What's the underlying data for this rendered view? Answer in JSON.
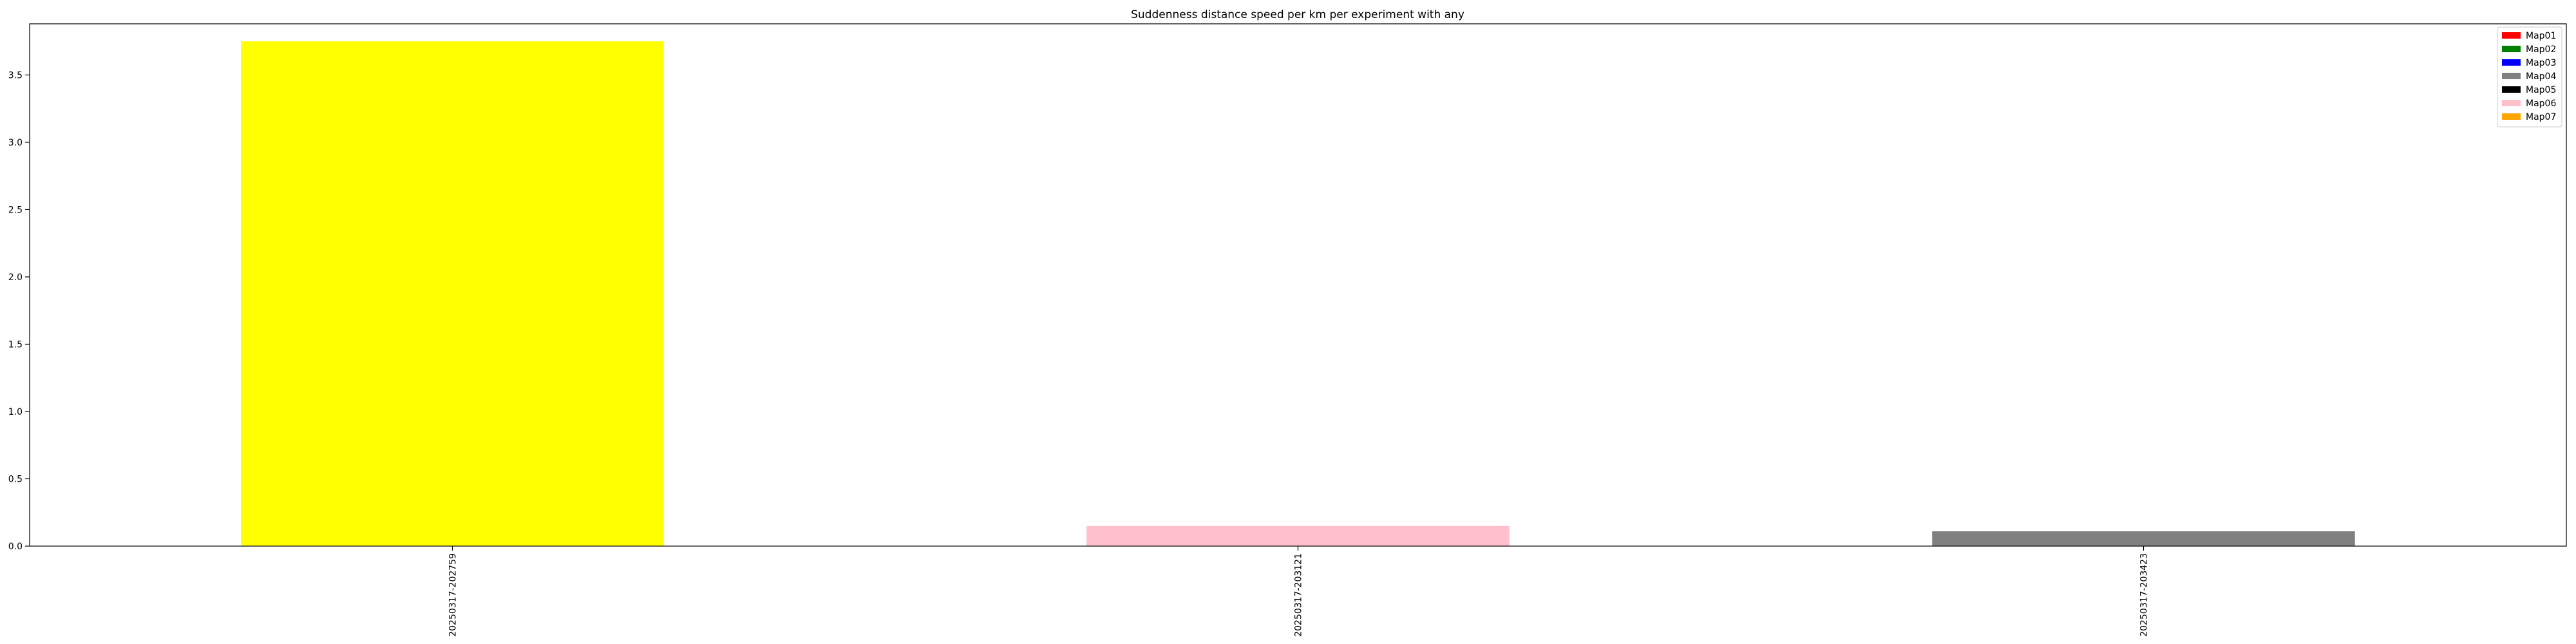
{
  "chart_data": {
    "type": "bar",
    "title": "Suddenness distance speed per km per experiment with any",
    "xlabel": "",
    "ylabel": "",
    "categories": [
      "20250317-202759",
      "20250317-203121",
      "20250317-203423"
    ],
    "values": [
      3.75,
      0.15,
      0.11
    ],
    "bar_colors": [
      "#ffff00",
      "#ffc0cb",
      "#808080"
    ],
    "ylim": [
      0,
      3.88
    ],
    "yticks": [
      0.0,
      0.5,
      1.0,
      1.5,
      2.0,
      2.5,
      3.0,
      3.5
    ],
    "ytick_labels": [
      "0.0",
      "0.5",
      "1.0",
      "1.5",
      "2.0",
      "2.5",
      "3.0",
      "3.5"
    ],
    "grid": false,
    "legend_position": "top-right",
    "legend": [
      {
        "label": "Map01",
        "color": "#ff0000"
      },
      {
        "label": "Map02",
        "color": "#008000"
      },
      {
        "label": "Map03",
        "color": "#0000ff"
      },
      {
        "label": "Map04",
        "color": "#808080"
      },
      {
        "label": "Map05",
        "color": "#000000"
      },
      {
        "label": "Map06",
        "color": "#ffc0cb"
      },
      {
        "label": "Map07",
        "color": "#ffa500"
      }
    ]
  }
}
